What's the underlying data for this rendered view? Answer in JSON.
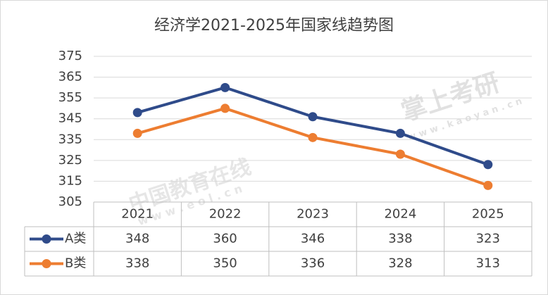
{
  "chart_data": {
    "type": "line",
    "title": "经济学2021-2025年国家线趋势图",
    "categories": [
      "2021",
      "2022",
      "2023",
      "2024",
      "2025"
    ],
    "series": [
      {
        "name": "A类",
        "color": "#2f4b8a",
        "values": [
          348,
          360,
          346,
          338,
          323
        ]
      },
      {
        "name": "B类",
        "color": "#ed7d31",
        "values": [
          338,
          350,
          336,
          328,
          313
        ]
      }
    ],
    "ylim": [
      305,
      375
    ],
    "yticks": [
      305,
      315,
      325,
      335,
      345,
      355,
      365,
      375
    ],
    "grid": true,
    "data_table": true,
    "annotations": [
      "中国教育在线",
      "w w w . e o l . c n",
      "掌上考研",
      "w w w . k a o y a n . c n"
    ]
  }
}
